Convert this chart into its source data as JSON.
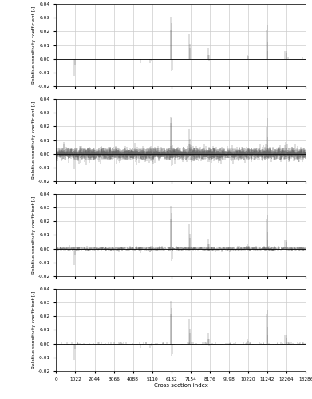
{
  "x_max": 13286,
  "x_ticks": [
    0,
    1022,
    2044,
    3066,
    4088,
    5110,
    6132,
    7154,
    8176,
    9198,
    10220,
    11242,
    12264,
    13286
  ],
  "ylim": [
    -0.02,
    0.04
  ],
  "yticks": [
    -0.02,
    -0.01,
    0.0,
    0.01,
    0.02,
    0.03,
    0.04
  ],
  "ylabel": "Relative sensitivity coefficient [-]",
  "xlabel": "Cross section index",
  "background_color": "#ffffff",
  "grid_color": "#cccccc",
  "line_color": "#666666",
  "subplots": 4,
  "seed": 12345,
  "peaks_direct": [
    [
      980,
      -0.012
    ],
    [
      1005,
      -0.004
    ],
    [
      4505,
      -0.003
    ],
    [
      5010,
      -0.003
    ],
    [
      5060,
      -0.002
    ],
    [
      6098,
      0.021
    ],
    [
      6112,
      0.031
    ],
    [
      6130,
      0.026
    ],
    [
      6155,
      -0.009
    ],
    [
      6175,
      -0.008
    ],
    [
      7095,
      0.018
    ],
    [
      7110,
      0.011
    ],
    [
      7140,
      0.008
    ],
    [
      8090,
      0.008
    ],
    [
      8110,
      0.003
    ],
    [
      8135,
      0.003
    ],
    [
      8160,
      -0.002
    ],
    [
      10195,
      0.003
    ],
    [
      10205,
      0.002
    ],
    [
      11195,
      0.021
    ],
    [
      11220,
      0.025
    ],
    [
      11240,
      0.012
    ],
    [
      11255,
      0.006
    ],
    [
      12190,
      0.006
    ],
    [
      12240,
      0.006
    ],
    [
      12280,
      0.004
    ],
    [
      12340,
      0.001
    ],
    [
      13100,
      0.001
    ]
  ]
}
